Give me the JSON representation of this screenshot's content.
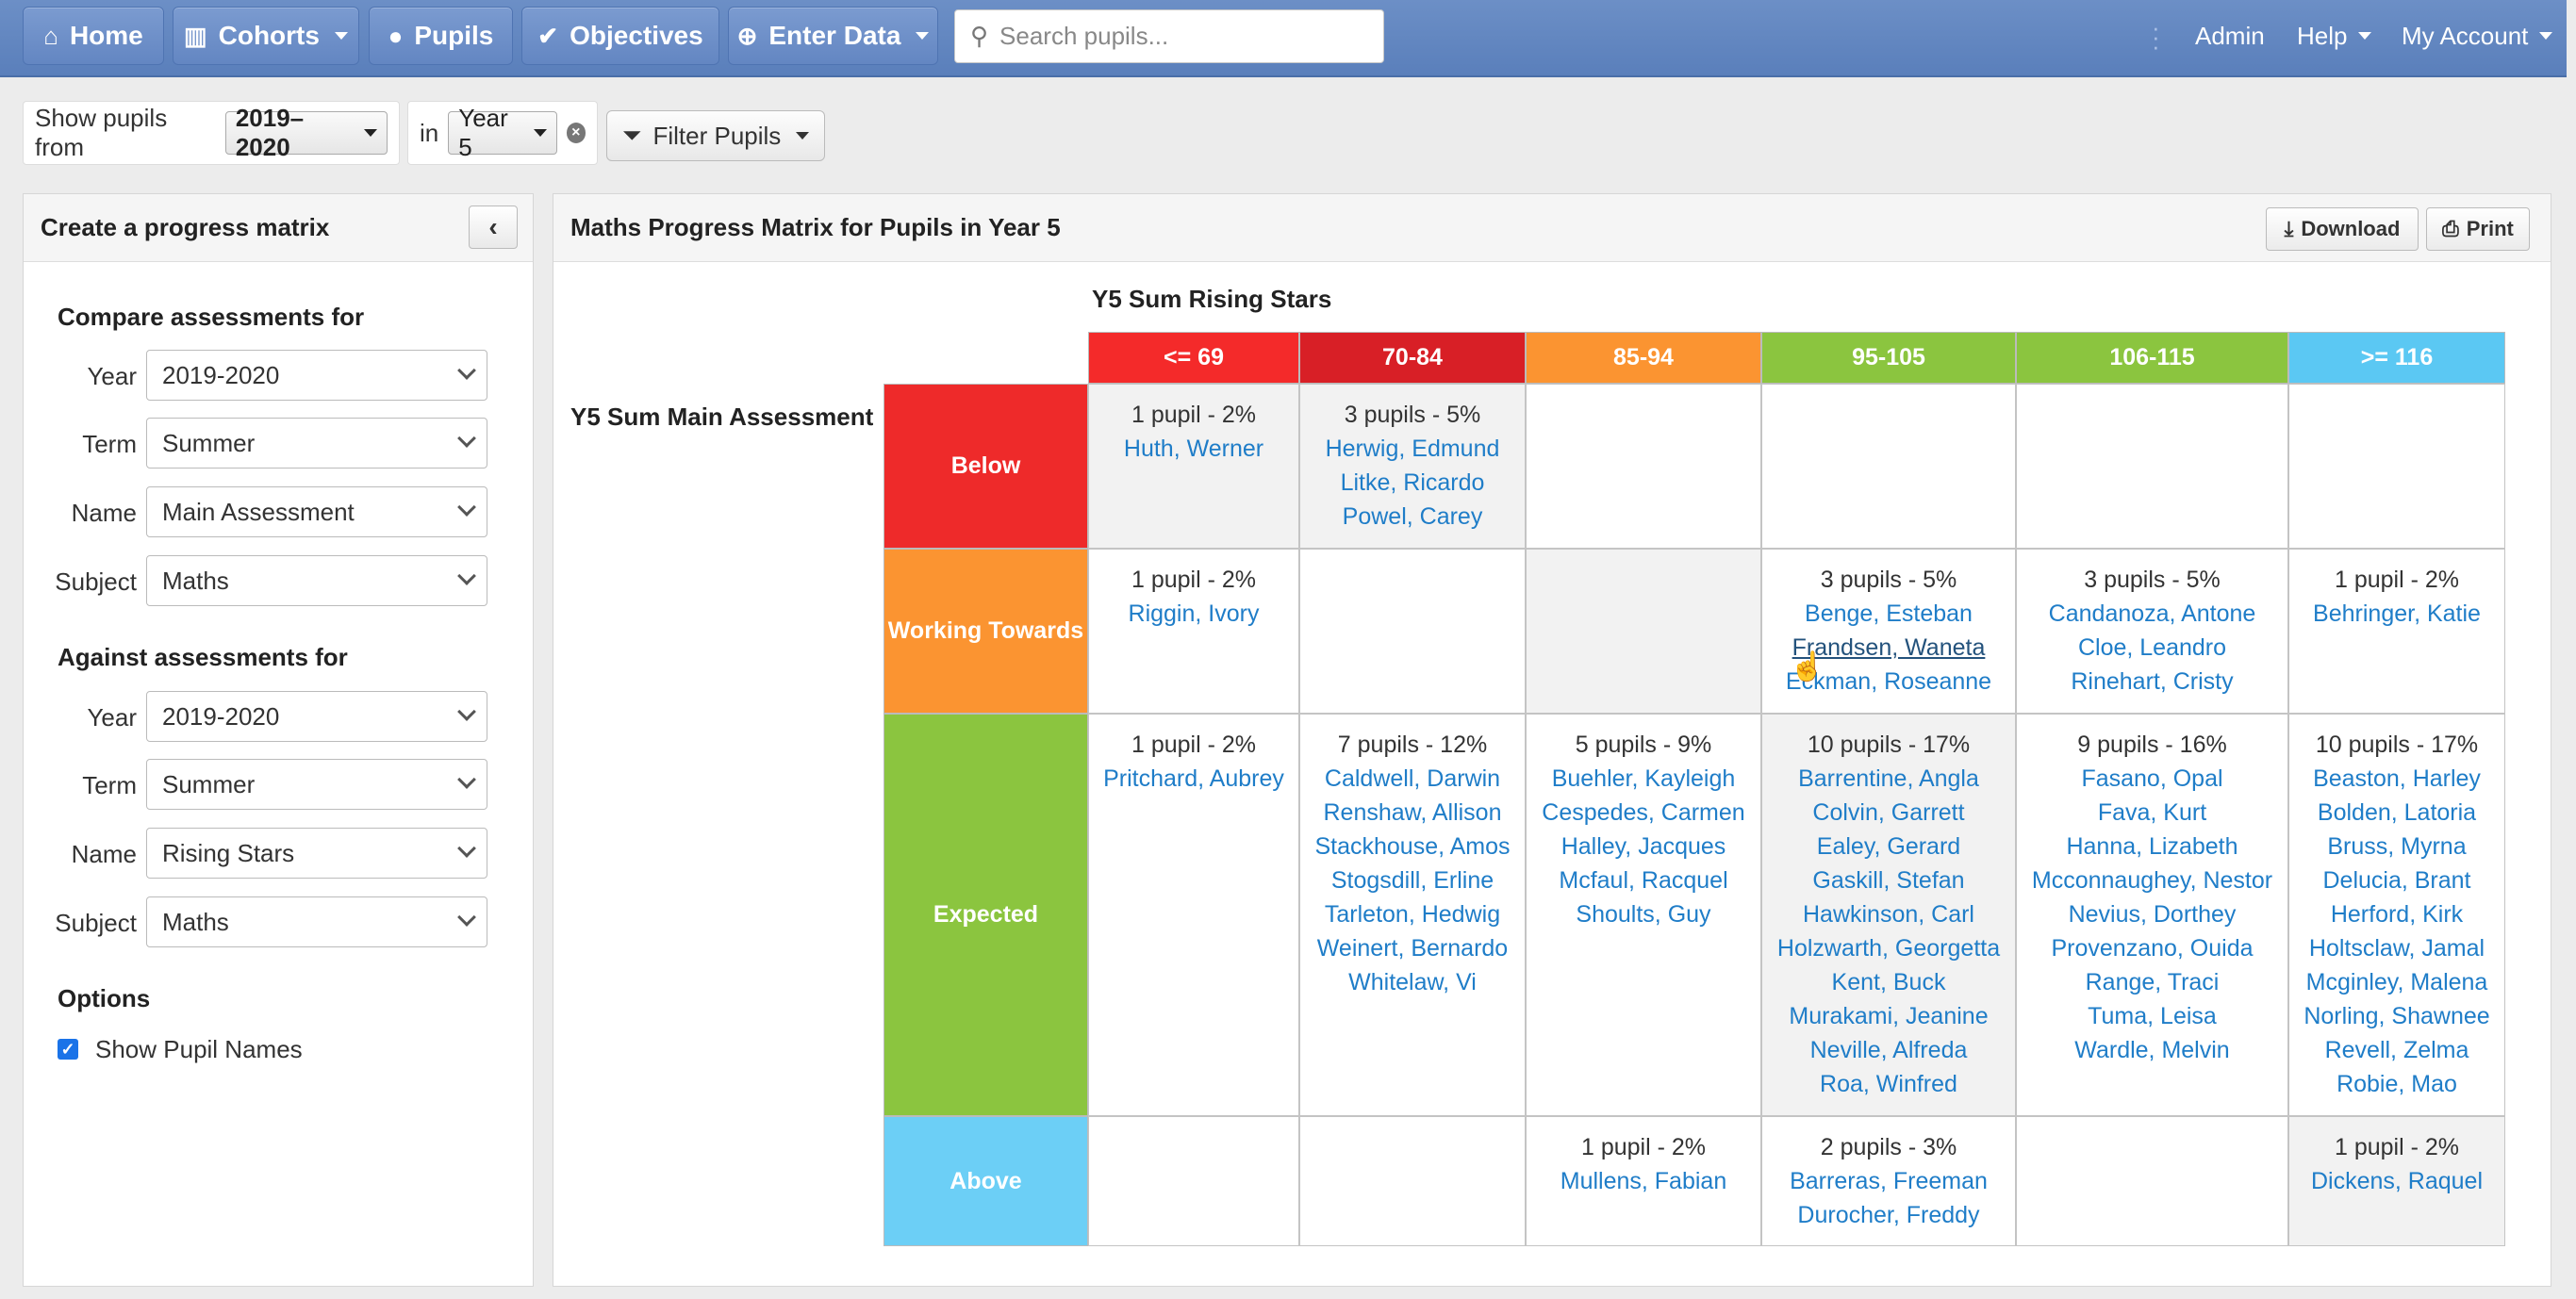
{
  "navbar": {
    "home": "Home",
    "cohorts": "Cohorts",
    "pupils": "Pupils",
    "objectives": "Objectives",
    "enter_data": "Enter Data",
    "search_placeholder": "Search pupils...",
    "admin": "Admin",
    "help": "Help",
    "my_account": "My Account"
  },
  "filters": {
    "show_label": "Show pupils from",
    "year_value": "2019–2020",
    "in_label": "in",
    "group_value": "Year 5",
    "filter_button": "Filter Pupils"
  },
  "left_panel": {
    "title": "Create a progress matrix",
    "compare_title": "Compare assessments for",
    "against_title": "Against assessments for",
    "labels": {
      "year": "Year",
      "term": "Term",
      "name": "Name",
      "subject": "Subject"
    },
    "compare": {
      "year": "2019-2020",
      "term": "Summer",
      "name": "Main Assessment",
      "subject": "Maths"
    },
    "against": {
      "year": "2019-2020",
      "term": "Summer",
      "name": "Rising Stars",
      "subject": "Maths"
    },
    "options_title": "Options",
    "show_names_label": "Show Pupil Names",
    "show_names_checked": true
  },
  "right_panel": {
    "title": "Maths Progress Matrix for Pupils in Year 5",
    "download": "Download",
    "print": "Print",
    "col_axis_title": "Y5 Sum Rising Stars",
    "row_axis_title": "Y5 Sum Main Assessment"
  },
  "matrix": {
    "columns": [
      {
        "label": "<= 69",
        "color": "#f42a2a"
      },
      {
        "label": "70-84",
        "color": "#d81f26"
      },
      {
        "label": "85-94",
        "color": "#fb9431"
      },
      {
        "label": "95-105",
        "color": "#8bc53f"
      },
      {
        "label": "106-115",
        "color": "#8bc53f"
      },
      {
        "label": ">= 116",
        "color": "#5bc8f3"
      }
    ],
    "rows": [
      {
        "label": "Below",
        "color": "#ee2a2a"
      },
      {
        "label": "Working Towards",
        "color": "#fb9431"
      },
      {
        "label": "Expected",
        "color": "#8bc53f"
      },
      {
        "label": "Above",
        "color": "#6ccff6"
      }
    ],
    "cells": [
      [
        {
          "count": "1 pupil - 2%",
          "names": [
            "Huth, Werner"
          ]
        },
        {
          "count": "3 pupils - 5%",
          "names": [
            "Herwig, Edmund",
            "Litke, Ricardo",
            "Powel, Carey"
          ]
        },
        {
          "count": "",
          "names": []
        },
        {
          "count": "",
          "names": []
        },
        {
          "count": "",
          "names": []
        },
        {
          "count": "",
          "names": []
        }
      ],
      [
        {
          "count": "1 pupil - 2%",
          "names": [
            "Riggin, Ivory"
          ]
        },
        {
          "count": "",
          "names": []
        },
        {
          "count": "",
          "names": []
        },
        {
          "count": "3 pupils - 5%",
          "names": [
            "Benge, Esteban",
            "Frandsen, Waneta",
            "Eckman, Roseanne"
          ]
        },
        {
          "count": "3 pupils - 5%",
          "names": [
            "Candanoza, Antone",
            "Cloe, Leandro",
            "Rinehart, Cristy"
          ]
        },
        {
          "count": "1 pupil - 2%",
          "names": [
            "Behringer, Katie"
          ]
        }
      ],
      [
        {
          "count": "1 pupil - 2%",
          "names": [
            "Pritchard, Aubrey"
          ]
        },
        {
          "count": "7 pupils - 12%",
          "names": [
            "Caldwell, Darwin",
            "Renshaw, Allison",
            "Stackhouse, Amos",
            "Stogsdill, Erline",
            "Tarleton, Hedwig",
            "Weinert, Bernardo",
            "Whitelaw, Vi"
          ]
        },
        {
          "count": "5 pupils - 9%",
          "names": [
            "Buehler, Kayleigh",
            "Cespedes, Carmen",
            "Halley, Jacques",
            "Mcfaul, Racquel",
            "Shoults, Guy"
          ]
        },
        {
          "count": "10 pupils - 17%",
          "names": [
            "Barrentine, Angla",
            "Colvin, Garrett",
            "Ealey, Gerard",
            "Gaskill, Stefan",
            "Hawkinson, Carl",
            "Holzwarth, Georgetta",
            "Kent, Buck",
            "Murakami, Jeanine",
            "Neville, Alfreda",
            "Roa, Winfred"
          ]
        },
        {
          "count": "9 pupils - 16%",
          "names": [
            "Fasano, Opal",
            "Fava, Kurt",
            "Hanna, Lizabeth",
            "Mcconnaughey, Nestor",
            "Nevius, Dorthey",
            "Provenzano, Ouida",
            "Range, Traci",
            "Tuma, Leisa",
            "Wardle, Melvin"
          ]
        },
        {
          "count": "10 pupils - 17%",
          "names": [
            "Beaston, Harley",
            "Bolden, Latoria",
            "Bruss, Myrna",
            "Delucia, Brant",
            "Herford, Kirk",
            "Holtsclaw, Jamal",
            "Mcginley, Malena",
            "Norling, Shawnee",
            "Revell, Zelma",
            "Robie, Mao"
          ]
        }
      ],
      [
        {
          "count": "",
          "names": []
        },
        {
          "count": "",
          "names": []
        },
        {
          "count": "1 pupil - 2%",
          "names": [
            "Mullens, Fabian"
          ]
        },
        {
          "count": "2 pupils - 3%",
          "names": [
            "Barreras, Freeman",
            "Durocher, Freddy"
          ]
        },
        {
          "count": "",
          "names": []
        },
        {
          "count": "1 pupil - 2%",
          "names": [
            "Dickens, Raquel"
          ]
        }
      ]
    ]
  }
}
